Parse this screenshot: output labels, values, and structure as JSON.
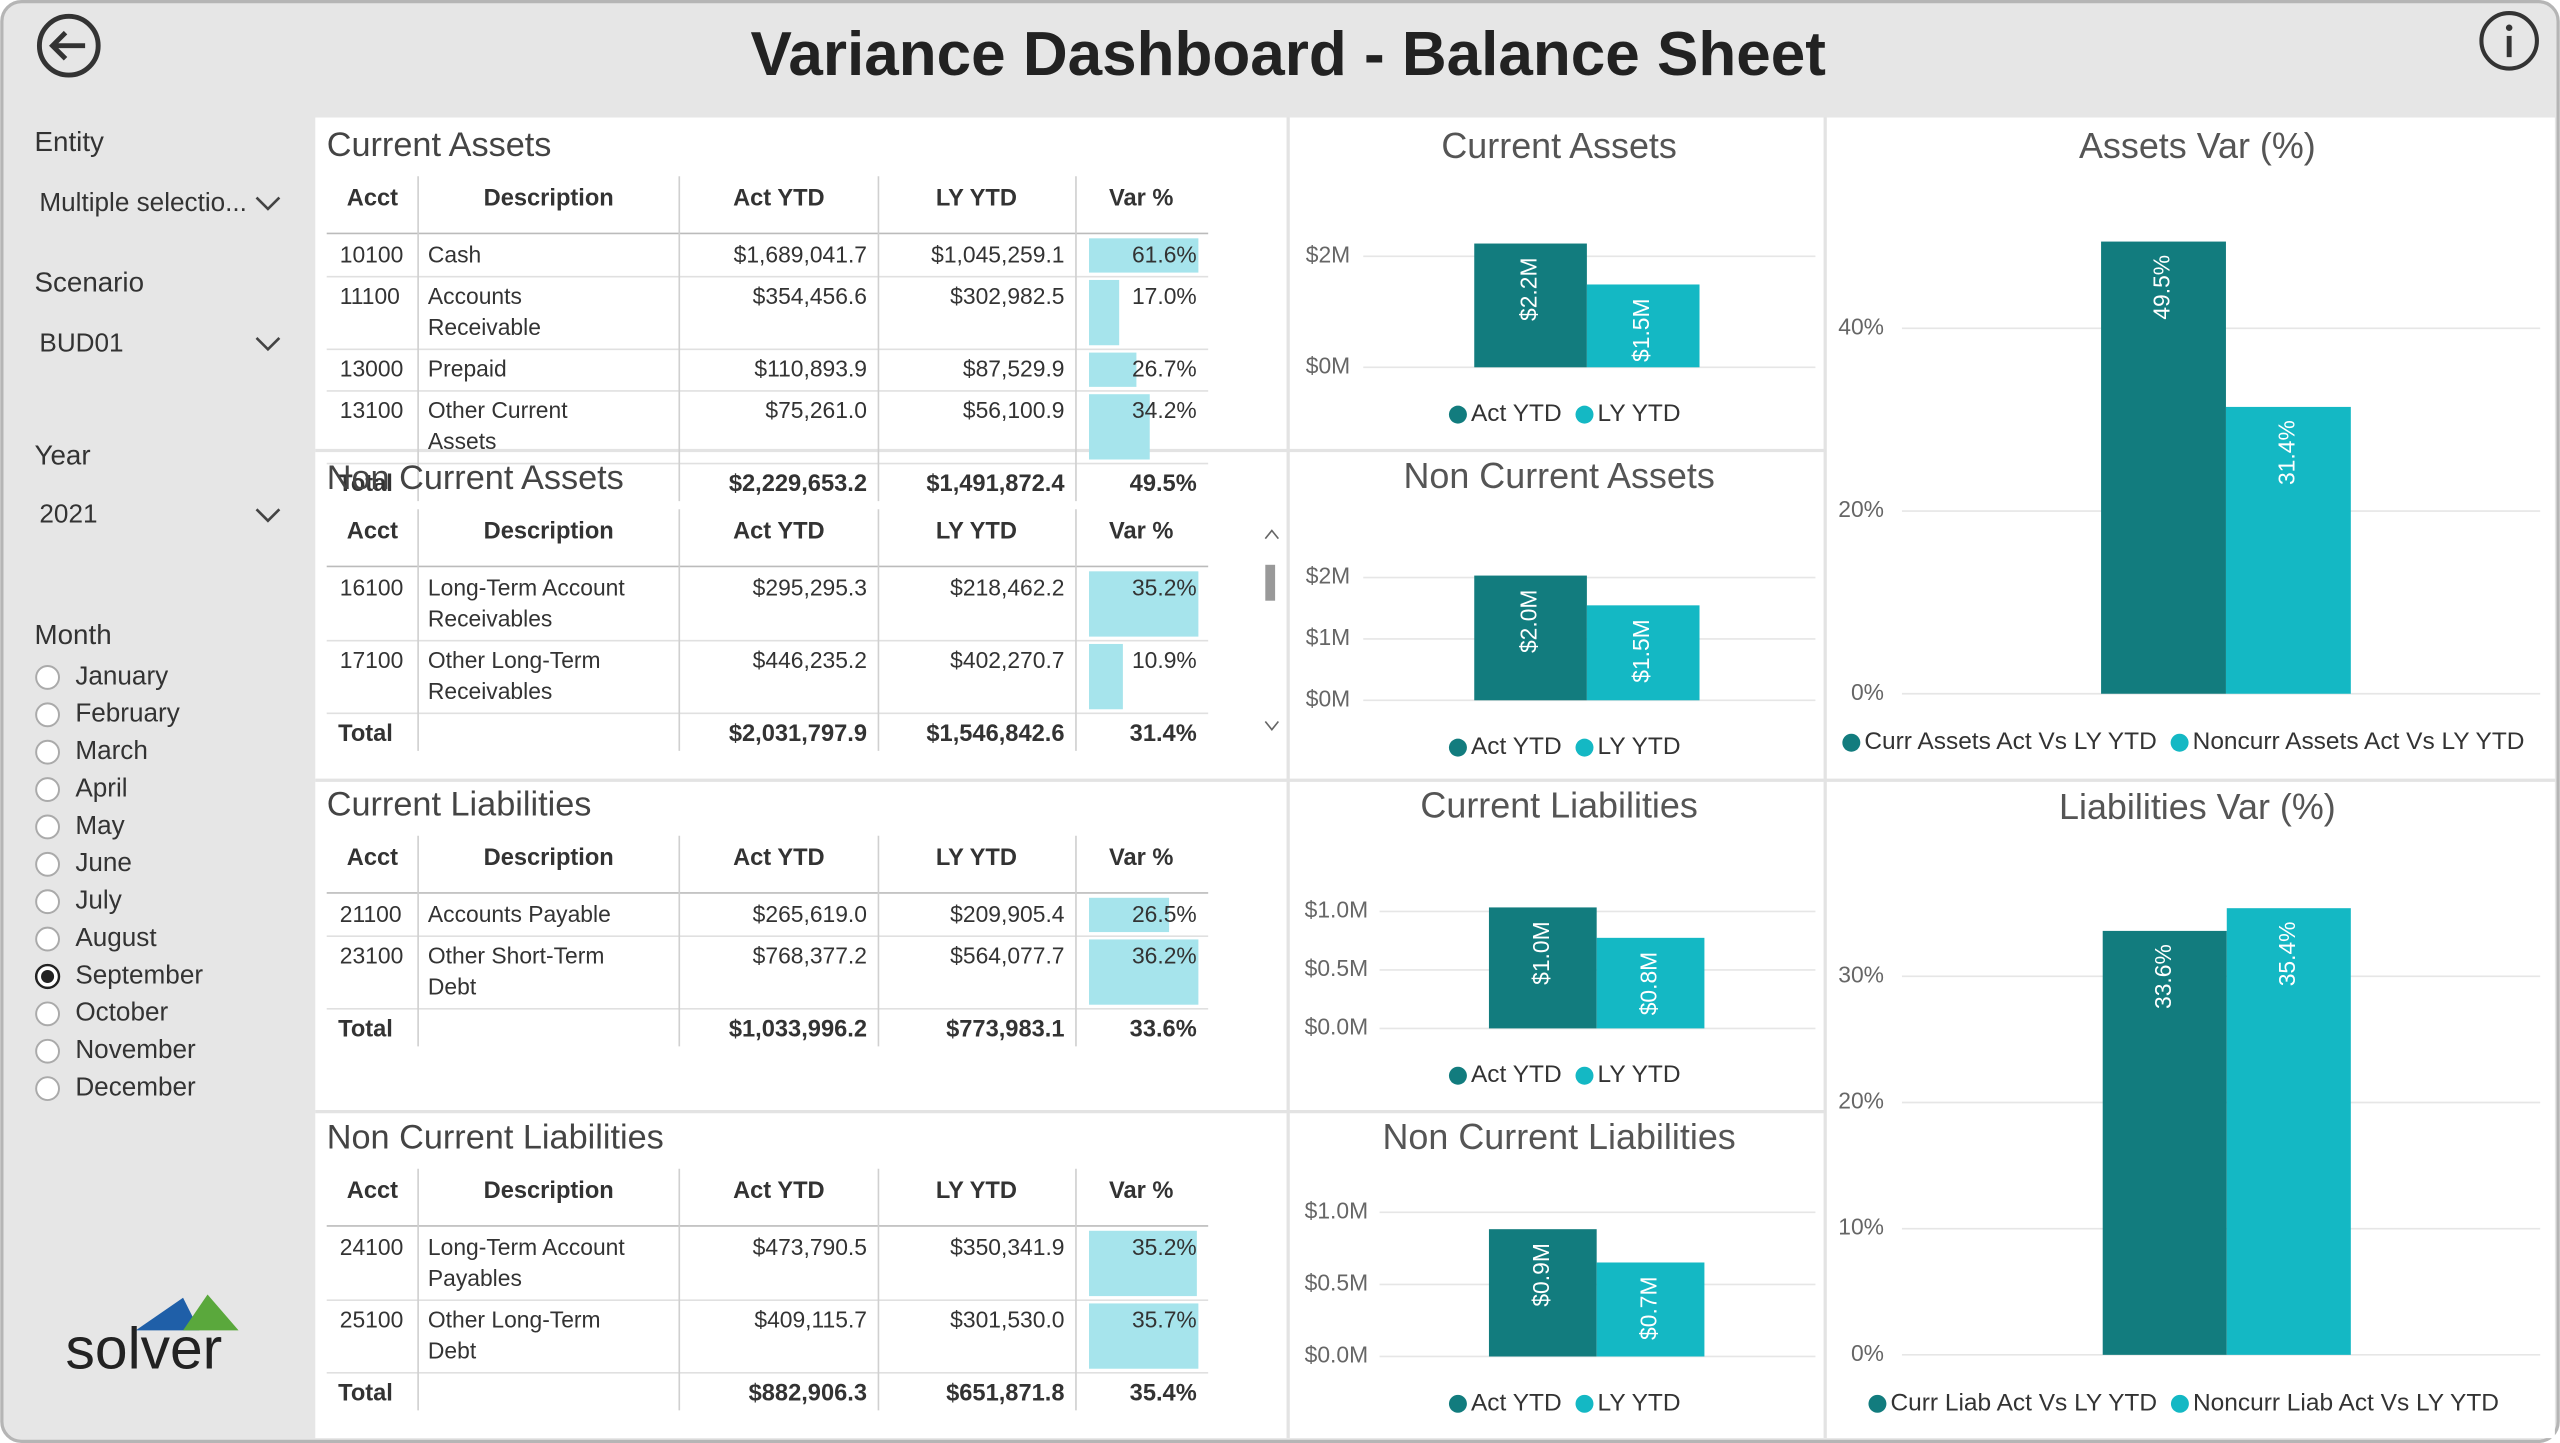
{
  "header": {
    "title": "Variance Dashboard - Balance Sheet"
  },
  "filters": {
    "entity": {
      "label": "Entity",
      "value": "Multiple selectio..."
    },
    "scenario": {
      "label": "Scenario",
      "value": "BUD01"
    },
    "year": {
      "label": "Year",
      "value": "2021"
    },
    "month": {
      "label": "Month",
      "options": [
        "January",
        "February",
        "March",
        "April",
        "May",
        "June",
        "July",
        "August",
        "September",
        "October",
        "November",
        "December"
      ],
      "selected": "September"
    }
  },
  "brand": "solver",
  "tables": [
    {
      "title": "Current Assets",
      "columns": [
        "Acct",
        "Description",
        "Act YTD",
        "LY YTD",
        "Var %"
      ],
      "rows": [
        {
          "acct": "10100",
          "description": "Cash",
          "act_ytd": "$1,689,041.7",
          "ly_ytd": "$1,045,259.1",
          "var": {
            "value": 61.6,
            "label": "61.6%"
          }
        },
        {
          "acct": "11100",
          "description": "Accounts Receivable",
          "act_ytd": "$354,456.6",
          "ly_ytd": "$302,982.5",
          "var": {
            "value": 17,
            "label": "17.0%"
          }
        },
        {
          "acct": "13000",
          "description": "Prepaid",
          "act_ytd": "$110,893.9",
          "ly_ytd": "$87,529.9",
          "var": {
            "value": 26.7,
            "label": "26.7%"
          }
        },
        {
          "acct": "13100",
          "description": "Other Current Assets",
          "act_ytd": "$75,261.0",
          "ly_ytd": "$56,100.9",
          "var": {
            "value": 34.2,
            "label": "34.2%"
          }
        }
      ],
      "total": {
        "label": "Total",
        "act_ytd": "$2,229,653.2",
        "ly_ytd": "$1,491,872.4",
        "var": "49.5%"
      }
    },
    {
      "title": "Non Current Assets",
      "columns": [
        "Acct",
        "Description",
        "Act YTD",
        "LY YTD",
        "Var %"
      ],
      "rows": [
        {
          "acct": "16100",
          "description": "Long-Term Account Receivables",
          "act_ytd": "$295,295.3",
          "ly_ytd": "$218,462.2",
          "var": {
            "value": 35.2,
            "label": "35.2%"
          }
        },
        {
          "acct": "17100",
          "description": "Other Long-Term Receivables",
          "act_ytd": "$446,235.2",
          "ly_ytd": "$402,270.7",
          "var": {
            "value": 10.9,
            "label": "10.9%"
          }
        }
      ],
      "total": {
        "label": "Total",
        "act_ytd": "$2,031,797.9",
        "ly_ytd": "$1,546,842.6",
        "var": "31.4%"
      }
    },
    {
      "title": "Current Liabilities",
      "columns": [
        "Acct",
        "Description",
        "Act YTD",
        "LY YTD",
        "Var %"
      ],
      "rows": [
        {
          "acct": "21100",
          "description": "Accounts Payable",
          "act_ytd": "$265,619.0",
          "ly_ytd": "$209,905.4",
          "var": {
            "value": 26.5,
            "label": "26.5%"
          }
        },
        {
          "acct": "23100",
          "description": "Other Short-Term Debt",
          "act_ytd": "$768,377.2",
          "ly_ytd": "$564,077.7",
          "var": {
            "value": 36.2,
            "label": "36.2%"
          }
        }
      ],
      "total": {
        "label": "Total",
        "act_ytd": "$1,033,996.2",
        "ly_ytd": "$773,983.1",
        "var": "33.6%"
      }
    },
    {
      "title": "Non Current Liabilities",
      "columns": [
        "Acct",
        "Description",
        "Act YTD",
        "LY YTD",
        "Var %"
      ],
      "rows": [
        {
          "acct": "24100",
          "description": "Long-Term Account Payables",
          "act_ytd": "$473,790.5",
          "ly_ytd": "$350,341.9",
          "var": {
            "value": 35.2,
            "label": "35.2%"
          }
        },
        {
          "acct": "25100",
          "description": "Other Long-Term Debt",
          "act_ytd": "$409,115.7",
          "ly_ytd": "$301,530.0",
          "var": {
            "value": 35.7,
            "label": "35.7%"
          }
        }
      ],
      "total": {
        "label": "Total",
        "act_ytd": "$882,906.3",
        "ly_ytd": "$651,871.8",
        "var": "35.4%"
      }
    }
  ],
  "charts": [
    {
      "type": "bar",
      "title": "Current Assets",
      "categories": [
        null
      ],
      "series": [
        {
          "name": "Act YTD",
          "color": "#127c7e",
          "values": [
            2229653.2
          ],
          "value_labels": [
            "$2.2M"
          ]
        },
        {
          "name": "LY YTD",
          "color": "#14b8c4",
          "values": [
            1491872.4
          ],
          "value_labels": [
            "$1.5M"
          ]
        }
      ],
      "ylim": [
        0,
        2500000
      ],
      "yticks": [
        {
          "value": 0,
          "label": "$0M"
        },
        {
          "value": 2000000,
          "label": "$2M"
        }
      ],
      "grid": true,
      "legend": "bottom"
    },
    {
      "type": "bar",
      "title": "Non Current Assets",
      "categories": [
        null
      ],
      "series": [
        {
          "name": "Act YTD",
          "color": "#127c7e",
          "values": [
            2031797.9
          ],
          "value_labels": [
            "$2.0M"
          ]
        },
        {
          "name": "LY YTD",
          "color": "#14b8c4",
          "values": [
            1546842.6
          ],
          "value_labels": [
            "$1.5M"
          ]
        }
      ],
      "ylim": [
        0,
        2500000
      ],
      "yticks": [
        {
          "value": 0,
          "label": "$0M"
        },
        {
          "value": 1000000,
          "label": "$1M"
        },
        {
          "value": 2000000,
          "label": "$2M"
        }
      ],
      "grid": true,
      "legend": "bottom"
    },
    {
      "type": "bar",
      "title": "Current Liabilities",
      "categories": [
        null
      ],
      "series": [
        {
          "name": "Act YTD",
          "color": "#127c7e",
          "values": [
            1033996.2
          ],
          "value_labels": [
            "$1.0M"
          ]
        },
        {
          "name": "LY YTD",
          "color": "#14b8c4",
          "values": [
            773983.1
          ],
          "value_labels": [
            "$0.8M"
          ]
        }
      ],
      "ylim": [
        0,
        1200000
      ],
      "yticks": [
        {
          "value": 0,
          "label": "$0.0M"
        },
        {
          "value": 500000,
          "label": "$0.5M"
        },
        {
          "value": 1000000,
          "label": "$1.0M"
        }
      ],
      "grid": true,
      "legend": "bottom"
    },
    {
      "type": "bar",
      "title": "Non Current Liabilities",
      "categories": [
        null
      ],
      "series": [
        {
          "name": "Act YTD",
          "color": "#127c7e",
          "values": [
            882906.3
          ],
          "value_labels": [
            "$0.9M"
          ]
        },
        {
          "name": "LY YTD",
          "color": "#14b8c4",
          "values": [
            651871.8
          ],
          "value_labels": [
            "$0.7M"
          ]
        }
      ],
      "ylim": [
        0,
        1200000
      ],
      "yticks": [
        {
          "value": 0,
          "label": "$0.0M"
        },
        {
          "value": 500000,
          "label": "$0.5M"
        },
        {
          "value": 1000000,
          "label": "$1.0M"
        }
      ],
      "grid": true,
      "legend": "bottom"
    },
    {
      "type": "bar",
      "title": "Assets Var (%)",
      "categories": [
        null
      ],
      "series": [
        {
          "name": "Curr Assets Act Vs LY YTD",
          "color": "#127c7e",
          "values": [
            49.5
          ],
          "value_labels": [
            "49.5%"
          ]
        },
        {
          "name": "Noncurr Assets Act Vs LY YTD",
          "color": "#14b8c4",
          "values": [
            31.4
          ],
          "value_labels": [
            "31.4%"
          ]
        }
      ],
      "ylim": [
        0,
        52
      ],
      "yticks": [
        {
          "value": 0,
          "label": "0%"
        },
        {
          "value": 20,
          "label": "20%"
        },
        {
          "value": 40,
          "label": "40%"
        }
      ],
      "grid": true,
      "legend": "bottom"
    },
    {
      "type": "bar",
      "title": "Liabilities Var (%)",
      "categories": [
        null
      ],
      "series": [
        {
          "name": "Curr Liab Act Vs LY YTD",
          "color": "#127c7e",
          "values": [
            33.6
          ],
          "value_labels": [
            "33.6%"
          ]
        },
        {
          "name": "Noncurr Liab Act Vs LY YTD",
          "color": "#14b8c4",
          "values": [
            35.4
          ],
          "value_labels": [
            "35.4%"
          ]
        }
      ],
      "ylim": [
        0,
        37
      ],
      "yticks": [
        {
          "value": 0,
          "label": "0%"
        },
        {
          "value": 10,
          "label": "10%"
        },
        {
          "value": 20,
          "label": "20%"
        },
        {
          "value": 30,
          "label": "30%"
        }
      ],
      "grid": true,
      "legend": "bottom"
    }
  ]
}
